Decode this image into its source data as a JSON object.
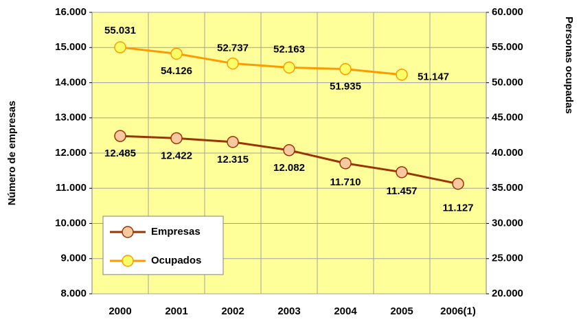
{
  "chart_data": {
    "type": "line",
    "categories": [
      "2000",
      "2001",
      "2002",
      "2003",
      "2004",
      "2005",
      "2006(1)"
    ],
    "y_label": "Número de empresas",
    "y2_label": "Personas ocupadas",
    "ylim": [
      8000,
      16000
    ],
    "yticks": [
      {
        "value": 8000,
        "label": "8.000"
      },
      {
        "value": 9000,
        "label": "9.000"
      },
      {
        "value": 10000,
        "label": "10.000"
      },
      {
        "value": 11000,
        "label": "11.000"
      },
      {
        "value": 12000,
        "label": "12.000"
      },
      {
        "value": 13000,
        "label": "13.000"
      },
      {
        "value": 14000,
        "label": "14.000"
      },
      {
        "value": 15000,
        "label": "15.000"
      },
      {
        "value": 16000,
        "label": "16.000"
      }
    ],
    "y2lim": [
      20000,
      60000
    ],
    "y2ticks": [
      {
        "value": 20000,
        "label": "20.000"
      },
      {
        "value": 25000,
        "label": "25.000"
      },
      {
        "value": 30000,
        "label": "30.000"
      },
      {
        "value": 35000,
        "label": "35.000"
      },
      {
        "value": 40000,
        "label": "40.000"
      },
      {
        "value": 45000,
        "label": "45.000"
      },
      {
        "value": 50000,
        "label": "50.000"
      },
      {
        "value": 55000,
        "label": "55.000"
      },
      {
        "value": 60000,
        "label": "60.000"
      }
    ],
    "grid": true,
    "legend": "lower left",
    "series": [
      {
        "name": "Empresas",
        "color": "#993300",
        "marker_color": "#f8c8a0",
        "values": [
          12485,
          12422,
          12315,
          12082,
          11710,
          11457,
          11127
        ],
        "value_labels": [
          "12.485",
          "12.422",
          "12.315",
          "12.082",
          "11.710",
          "11.457",
          "11.127"
        ]
      },
      {
        "name": "Ocupados",
        "color": "#ff9900",
        "marker_color": "#ffff66",
        "axis": "y2",
        "values": [
          55031,
          54126,
          52737,
          52163,
          51935,
          51147,
          null
        ],
        "value_labels": [
          "55.031",
          "54.126",
          "52.737",
          "52.163",
          "51.935",
          "51.147",
          null
        ]
      }
    ]
  }
}
